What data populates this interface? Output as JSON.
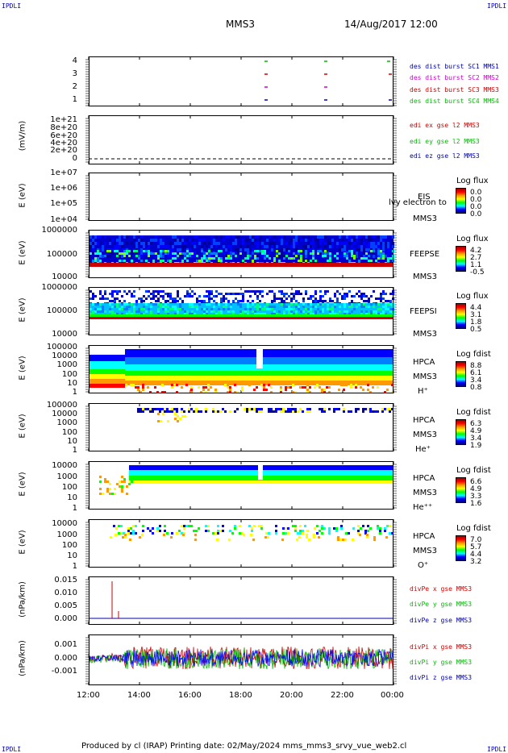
{
  "corners": {
    "tl": "IPDLI",
    "tr": "IPDLI",
    "bl": "IPDLI",
    "br": "IPDLI"
  },
  "header": {
    "title": "MMS3",
    "date": "14/Aug/2017 12:00"
  },
  "footer": {
    "text": "Produced by cl (IRAP)   Printing date: 02/May/2024   mms_mms3_srvy_vue_web2.cl"
  },
  "x_ticks": [
    "12:00",
    "14:00",
    "16:00",
    "18:00",
    "20:00",
    "22:00",
    "00:00"
  ],
  "colors": {
    "c1": "#0000aa",
    "c2": "#cc00cc",
    "c3": "#cc0000",
    "c4": "#00bb00"
  },
  "panels": [
    {
      "id": "p1",
      "ylabel": "",
      "ticks": [
        "4",
        "3",
        "2",
        "1"
      ],
      "legend": [
        "des dist burst SC1 MMS1",
        "des dist burst SC2 MMS2",
        "des dist burst SC3 MMS3",
        "des dist burst SC4 MMS4"
      ]
    },
    {
      "id": "p2",
      "ylabel": "(mV/m)",
      "ticks": [
        "1e+21",
        "8e+20",
        "6e+20",
        "4e+20",
        "2e+20",
        "0"
      ],
      "legend": [
        "edi ex gse l2 MMS3",
        "edi ey gse l2 MMS3",
        "edi ez gse l2 MMS3"
      ]
    },
    {
      "id": "p3",
      "ylabel": "E (eV)",
      "ticks": [
        "1e+07",
        "1e+06",
        "1e+05",
        "1e+04"
      ],
      "side": [
        "EIS",
        "MMS3"
      ],
      "overlay": "lvy electron to",
      "cb": {
        "title": "Log flux",
        "vals": [
          "0.0",
          "0.0",
          "0.0",
          "0.0"
        ]
      }
    },
    {
      "id": "p4",
      "ylabel": "E (eV)",
      "ticks": [
        "1000000",
        "100000",
        "10000"
      ],
      "side": [
        "FEEPSE",
        "MMS3"
      ],
      "cb": {
        "title": "Log flux",
        "vals": [
          "4.2",
          "2.7",
          "1.1",
          "-0.5"
        ]
      }
    },
    {
      "id": "p5",
      "ylabel": "E (eV)",
      "ticks": [
        "1000000",
        "100000",
        "10000"
      ],
      "side": [
        "FEEPSI",
        "MMS3"
      ],
      "cb": {
        "title": "Log flux",
        "vals": [
          "4.4",
          "3.1",
          "1.8",
          "0.5"
        ]
      }
    },
    {
      "id": "p6",
      "ylabel": "E (eV)",
      "ticks": [
        "100000",
        "10000",
        "1000",
        "100",
        "10",
        "1"
      ],
      "side": [
        "HPCA",
        "MMS3",
        "H⁺"
      ],
      "cb": {
        "title": "Log fdist",
        "vals": [
          "8.8",
          "6.1",
          "3.4",
          "0.8"
        ]
      }
    },
    {
      "id": "p7",
      "ylabel": "E (eV)",
      "ticks": [
        "100000",
        "10000",
        "1000",
        "100",
        "10",
        "1"
      ],
      "side": [
        "HPCA",
        "MMS3",
        "He⁺"
      ],
      "cb": {
        "title": "Log fdist",
        "vals": [
          "6.3",
          "4.9",
          "3.4",
          "1.9"
        ]
      }
    },
    {
      "id": "p8",
      "ylabel": "E (eV)",
      "ticks": [
        "10000",
        "1000",
        "100",
        "10",
        "1"
      ],
      "side": [
        "HPCA",
        "MMS3",
        "He⁺⁺"
      ],
      "cb": {
        "title": "Log fdist",
        "vals": [
          "6.6",
          "4.9",
          "3.3",
          "1.6"
        ]
      }
    },
    {
      "id": "p9",
      "ylabel": "E (eV)",
      "ticks": [
        "10000",
        "1000",
        "100",
        "10",
        "1"
      ],
      "side": [
        "HPCA",
        "MMS3",
        "O⁺"
      ],
      "cb": {
        "title": "Log fdist",
        "vals": [
          "7.0",
          "5.7",
          "4.4",
          "3.2"
        ]
      }
    },
    {
      "id": "p10",
      "ylabel": "(nPa/km)",
      "ticks": [
        "0.015",
        "0.010",
        "0.005",
        "0.000"
      ],
      "legend": [
        "divPe x gse MMS3",
        "divPe y gse MMS3",
        "divPe z gse MMS3"
      ]
    },
    {
      "id": "p11",
      "ylabel": "(nPa/km)",
      "ticks": [
        "0.001",
        "0.000",
        "-0.001"
      ],
      "legend": [
        "divPi x gse MMS3",
        "divPi y gse MMS3",
        "divPi z gse MMS3"
      ]
    }
  ],
  "chart_data": {
    "type": "heatmap",
    "x_range": [
      "12:00",
      "00:00"
    ],
    "divPe_spike": {
      "time": "12:55",
      "value": 0.014
    },
    "divPi_ylim": [
      -0.0015,
      0.0015
    ],
    "divPe_ylim": [
      -0.001,
      0.016
    ]
  }
}
